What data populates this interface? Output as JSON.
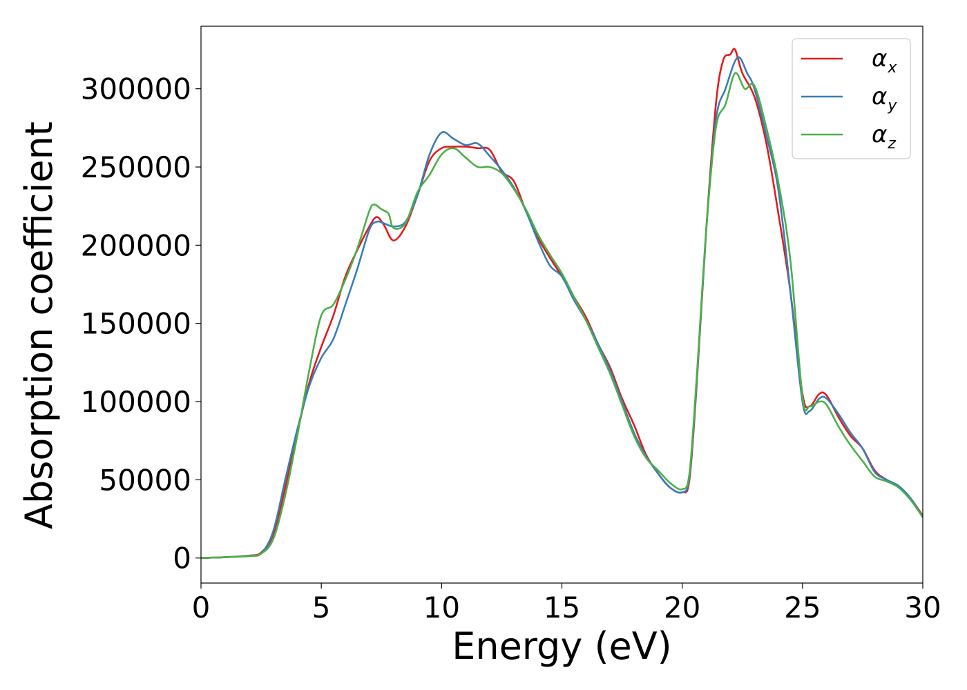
{
  "chart_data": {
    "type": "line",
    "title": "",
    "xlabel": "Energy (eV)",
    "ylabel": "Absorption coefficient",
    "xlim": [
      0,
      30
    ],
    "ylim": [
      -16000,
      340000
    ],
    "xticks": [
      0,
      5,
      10,
      15,
      20,
      25,
      30
    ],
    "yticks": [
      0,
      50000,
      100000,
      150000,
      200000,
      250000,
      300000
    ],
    "xtick_labels": [
      "0",
      "5",
      "10",
      "15",
      "20",
      "25",
      "30"
    ],
    "ytick_labels": [
      "0",
      "50000",
      "100000",
      "150000",
      "200000",
      "250000",
      "300000"
    ],
    "grid": false,
    "legend": "top-right",
    "series": [
      {
        "name": "α_x",
        "legend_symbol": "α",
        "legend_subscript": "x",
        "color": "#e41a1c",
        "points": [
          [
            0,
            0
          ],
          [
            1,
            500
          ],
          [
            2,
            1500
          ],
          [
            2.5,
            3500
          ],
          [
            3,
            15000
          ],
          [
            3.5,
            45000
          ],
          [
            4,
            80000
          ],
          [
            4.5,
            112000
          ],
          [
            5,
            135000
          ],
          [
            5.5,
            155000
          ],
          [
            6,
            180000
          ],
          [
            6.5,
            197000
          ],
          [
            7,
            212000
          ],
          [
            7.3,
            218000
          ],
          [
            7.6,
            213000
          ],
          [
            8,
            203000
          ],
          [
            8.5,
            212000
          ],
          [
            9,
            232000
          ],
          [
            9.5,
            254000
          ],
          [
            10,
            262000
          ],
          [
            10.5,
            263000
          ],
          [
            11,
            263000
          ],
          [
            11.5,
            262000
          ],
          [
            12,
            261000
          ],
          [
            12.5,
            247000
          ],
          [
            13,
            241000
          ],
          [
            13.5,
            222000
          ],
          [
            14,
            205000
          ],
          [
            14.5,
            192000
          ],
          [
            15,
            180000
          ],
          [
            15.5,
            167000
          ],
          [
            16,
            154000
          ],
          [
            16.5,
            137000
          ],
          [
            17,
            122000
          ],
          [
            17.5,
            102000
          ],
          [
            18,
            85000
          ],
          [
            18.5,
            66000
          ],
          [
            19,
            54000
          ],
          [
            19.5,
            45000
          ],
          [
            20,
            42000
          ],
          [
            20.3,
            50000
          ],
          [
            20.6,
            110000
          ],
          [
            21,
            210000
          ],
          [
            21.4,
            290000
          ],
          [
            21.7,
            318000
          ],
          [
            22,
            322000
          ],
          [
            22.2,
            325000
          ],
          [
            22.5,
            310000
          ],
          [
            23,
            295000
          ],
          [
            23.5,
            265000
          ],
          [
            24,
            220000
          ],
          [
            24.5,
            170000
          ],
          [
            25,
            105000
          ],
          [
            25.3,
            97000
          ],
          [
            25.7,
            105000
          ],
          [
            26,
            104000
          ],
          [
            26.5,
            90000
          ],
          [
            27,
            78000
          ],
          [
            27.5,
            70000
          ],
          [
            28,
            56000
          ],
          [
            28.5,
            50000
          ],
          [
            29,
            46000
          ],
          [
            29.5,
            38000
          ],
          [
            30,
            27000
          ]
        ]
      },
      {
        "name": "α_y",
        "legend_symbol": "α",
        "legend_subscript": "y",
        "color": "#377eb8",
        "points": [
          [
            0,
            0
          ],
          [
            1,
            500
          ],
          [
            2,
            1500
          ],
          [
            2.5,
            3000
          ],
          [
            3,
            17000
          ],
          [
            3.5,
            50000
          ],
          [
            4,
            82000
          ],
          [
            4.5,
            110000
          ],
          [
            5,
            128000
          ],
          [
            5.5,
            140000
          ],
          [
            6,
            162000
          ],
          [
            6.5,
            185000
          ],
          [
            7,
            210000
          ],
          [
            7.3,
            215000
          ],
          [
            7.6,
            214000
          ],
          [
            8,
            212000
          ],
          [
            8.5,
            215000
          ],
          [
            9,
            232000
          ],
          [
            9.5,
            258000
          ],
          [
            10,
            272000
          ],
          [
            10.5,
            268000
          ],
          [
            11,
            264000
          ],
          [
            11.5,
            265000
          ],
          [
            12,
            257000
          ],
          [
            12.5,
            248000
          ],
          [
            13,
            237000
          ],
          [
            13.5,
            222000
          ],
          [
            14,
            203000
          ],
          [
            14.5,
            187000
          ],
          [
            15,
            180000
          ],
          [
            15.5,
            165000
          ],
          [
            16,
            152000
          ],
          [
            16.5,
            137000
          ],
          [
            17,
            120000
          ],
          [
            17.5,
            100000
          ],
          [
            18,
            80000
          ],
          [
            18.5,
            65000
          ],
          [
            19,
            54000
          ],
          [
            19.5,
            45000
          ],
          [
            20,
            42000
          ],
          [
            20.3,
            52000
          ],
          [
            20.6,
            112000
          ],
          [
            21,
            210000
          ],
          [
            21.4,
            280000
          ],
          [
            21.8,
            300000
          ],
          [
            22.3,
            320000
          ],
          [
            22.7,
            310000
          ],
          [
            23,
            300000
          ],
          [
            23.5,
            270000
          ],
          [
            24,
            235000
          ],
          [
            24.5,
            170000
          ],
          [
            25,
            100000
          ],
          [
            25.3,
            94000
          ],
          [
            25.7,
            102000
          ],
          [
            26,
            102000
          ],
          [
            26.5,
            92000
          ],
          [
            27,
            80000
          ],
          [
            27.5,
            70000
          ],
          [
            28,
            55000
          ],
          [
            28.5,
            50000
          ],
          [
            29,
            46000
          ],
          [
            29.5,
            38000
          ],
          [
            30,
            26000
          ]
        ]
      },
      {
        "name": "α_z",
        "legend_symbol": "α",
        "legend_subscript": "z",
        "color": "#4daf4a",
        "points": [
          [
            0,
            0
          ],
          [
            1,
            500
          ],
          [
            2,
            1200
          ],
          [
            2.5,
            2800
          ],
          [
            3,
            12000
          ],
          [
            3.5,
            40000
          ],
          [
            4,
            78000
          ],
          [
            4.5,
            120000
          ],
          [
            5,
            155000
          ],
          [
            5.5,
            162000
          ],
          [
            6,
            178000
          ],
          [
            6.5,
            198000
          ],
          [
            7,
            222000
          ],
          [
            7.2,
            226000
          ],
          [
            7.5,
            223000
          ],
          [
            7.8,
            220000
          ],
          [
            8,
            211000
          ],
          [
            8.5,
            214000
          ],
          [
            9,
            234000
          ],
          [
            9.5,
            245000
          ],
          [
            10,
            258000
          ],
          [
            10.5,
            262000
          ],
          [
            11,
            256000
          ],
          [
            11.5,
            250000
          ],
          [
            12,
            250000
          ],
          [
            12.5,
            246000
          ],
          [
            13,
            236000
          ],
          [
            13.5,
            223000
          ],
          [
            14,
            207000
          ],
          [
            14.5,
            194000
          ],
          [
            15,
            182000
          ],
          [
            15.5,
            167000
          ],
          [
            16,
            152000
          ],
          [
            16.5,
            135000
          ],
          [
            17,
            118000
          ],
          [
            17.5,
            98000
          ],
          [
            18,
            78000
          ],
          [
            18.5,
            64000
          ],
          [
            19,
            56000
          ],
          [
            19.5,
            48000
          ],
          [
            20,
            44000
          ],
          [
            20.3,
            54000
          ],
          [
            20.6,
            115000
          ],
          [
            21,
            210000
          ],
          [
            21.4,
            275000
          ],
          [
            21.8,
            290000
          ],
          [
            22.2,
            310000
          ],
          [
            22.6,
            300000
          ],
          [
            23,
            302000
          ],
          [
            23.5,
            275000
          ],
          [
            24,
            240000
          ],
          [
            24.5,
            190000
          ],
          [
            25,
            103000
          ],
          [
            25.3,
            97000
          ],
          [
            25.7,
            100000
          ],
          [
            26,
            98000
          ],
          [
            26.5,
            84000
          ],
          [
            27,
            72000
          ],
          [
            27.5,
            62000
          ],
          [
            28,
            52000
          ],
          [
            28.5,
            49000
          ],
          [
            29,
            45000
          ],
          [
            29.5,
            37000
          ],
          [
            30,
            26000
          ]
        ]
      }
    ]
  }
}
